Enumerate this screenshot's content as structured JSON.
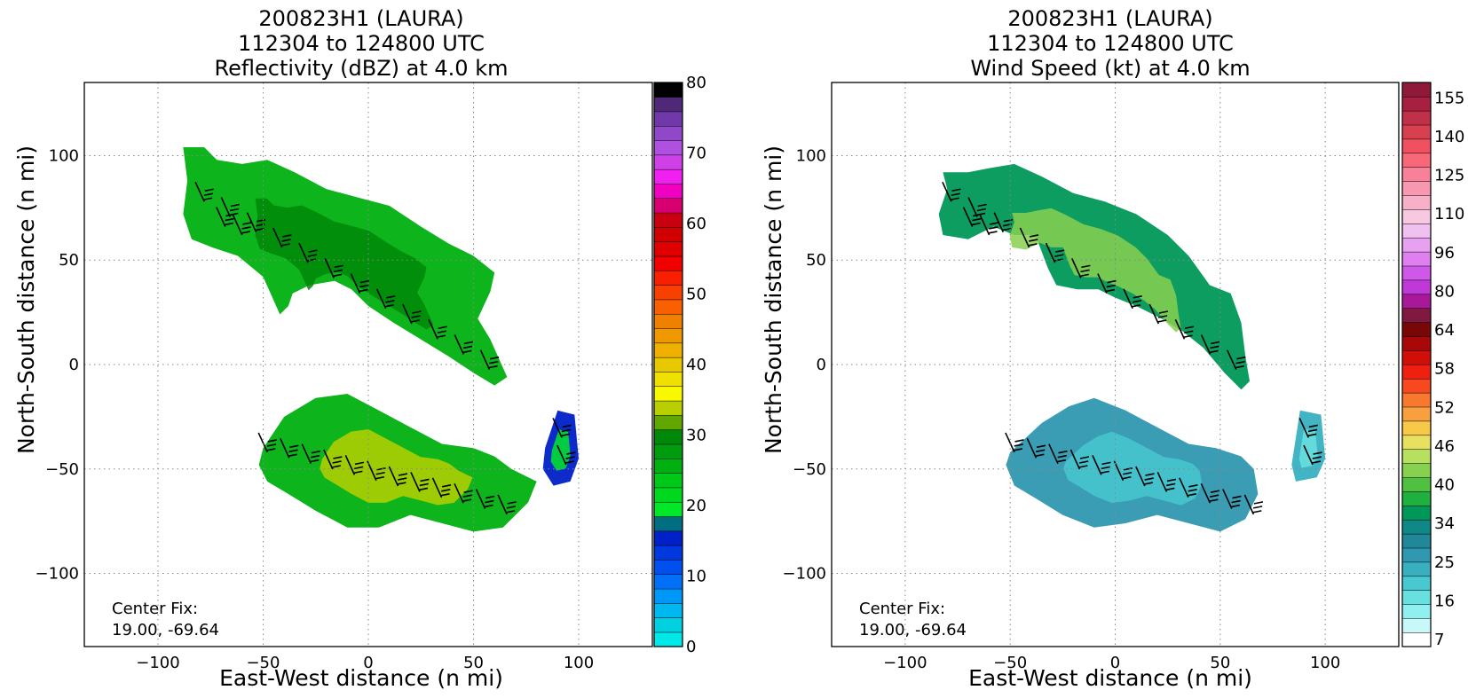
{
  "figure": {
    "center_fix_label": "Center Fix:",
    "center_fix_value": "19.00, -69.64"
  },
  "chart_data": [
    {
      "type": "heatmap",
      "title_line1": "200823H1 (LAURA)",
      "title_line2": "112304 to 124800 UTC",
      "title_line3": "Reflectivity (dBZ) at 4.0 km",
      "xlabel": "East-West distance (n mi)",
      "ylabel": "North-South distance (n mi)",
      "xlim": [
        -135,
        135
      ],
      "ylim": [
        -135,
        135
      ],
      "xticks": [
        -100,
        -50,
        0,
        50,
        100
      ],
      "yticks": [
        -100,
        -50,
        0,
        50,
        100
      ],
      "xtick_labels": [
        "−100",
        "−50",
        "0",
        "50",
        "100"
      ],
      "ytick_labels": [
        "−100",
        "−50",
        "0",
        "50",
        "100"
      ],
      "grid": true,
      "colorbar": {
        "range": [
          0,
          80
        ],
        "ticks": [
          0,
          10,
          20,
          30,
          40,
          50,
          60,
          70,
          80
        ],
        "tick_labels": [
          "0",
          "10",
          "20",
          "30",
          "40",
          "50",
          "60",
          "70",
          "80"
        ],
        "colors": [
          "#00e8e8",
          "#00d0e0",
          "#00b8f0",
          "#0098f8",
          "#0070f8",
          "#0050f0",
          "#0038e0",
          "#0020c8",
          "#006e80",
          "#00e828",
          "#00d820",
          "#00c818",
          "#00b010",
          "#009c10",
          "#008808",
          "#60a800",
          "#b8d000",
          "#f8f800",
          "#f0e000",
          "#e8c800",
          "#f0b000",
          "#f09800",
          "#f08000",
          "#f86000",
          "#f84000",
          "#f82000",
          "#f00000",
          "#e00000",
          "#d00000",
          "#c80010",
          "#d80070",
          "#f000c0",
          "#f020f0",
          "#d040e8",
          "#b050e0",
          "#9048c8",
          "#7038a8",
          "#502878",
          "#000000"
        ]
      },
      "regions": [
        {
          "name": "northern rainband",
          "dbz": 25,
          "points": [
            [
              -88,
              104
            ],
            [
              -78,
              104
            ],
            [
              -72,
              98
            ],
            [
              -60,
              96
            ],
            [
              -48,
              98
            ],
            [
              -35,
              92
            ],
            [
              -20,
              84
            ],
            [
              -5,
              80
            ],
            [
              10,
              76
            ],
            [
              25,
              66
            ],
            [
              38,
              58
            ],
            [
              50,
              52
            ],
            [
              60,
              44
            ],
            [
              58,
              35
            ],
            [
              52,
              22
            ],
            [
              58,
              12
            ],
            [
              66,
              -6
            ],
            [
              60,
              -10
            ],
            [
              50,
              -4
            ],
            [
              38,
              4
            ],
            [
              25,
              12
            ],
            [
              12,
              20
            ],
            [
              0,
              28
            ],
            [
              -8,
              36
            ],
            [
              -16,
              40
            ],
            [
              -28,
              38
            ],
            [
              -36,
              34
            ],
            [
              -38,
              28
            ],
            [
              -42,
              24
            ],
            [
              -50,
              42
            ],
            [
              -62,
              52
            ],
            [
              -74,
              56
            ],
            [
              -84,
              60
            ],
            [
              -88,
              72
            ],
            [
              -86,
              88
            ]
          ]
        },
        {
          "name": "southern rainband",
          "dbz": 26,
          "points": [
            [
              -50,
              -40
            ],
            [
              -40,
              -25
            ],
            [
              -25,
              -16
            ],
            [
              -10,
              -14
            ],
            [
              5,
              -22
            ],
            [
              20,
              -30
            ],
            [
              35,
              -38
            ],
            [
              50,
              -40
            ],
            [
              60,
              -44
            ],
            [
              68,
              -50
            ],
            [
              80,
              -56
            ],
            [
              76,
              -66
            ],
            [
              64,
              -78
            ],
            [
              50,
              -80
            ],
            [
              35,
              -76
            ],
            [
              20,
              -72
            ],
            [
              5,
              -78
            ],
            [
              -10,
              -78
            ],
            [
              -25,
              -70
            ],
            [
              -38,
              -62
            ],
            [
              -48,
              -56
            ],
            [
              -52,
              -48
            ]
          ]
        },
        {
          "name": "eastern cell",
          "dbz": 14,
          "points": [
            [
              84,
              -40
            ],
            [
              90,
              -22
            ],
            [
              98,
              -24
            ],
            [
              100,
              -45
            ],
            [
              96,
              -56
            ],
            [
              88,
              -58
            ],
            [
              83,
              -50
            ]
          ]
        }
      ],
      "barbs_present": true
    },
    {
      "type": "heatmap",
      "title_line1": "200823H1 (LAURA)",
      "title_line2": "112304 to 124800 UTC",
      "title_line3": "Wind Speed (kt) at 4.0 km",
      "xlabel": "East-West distance (n mi)",
      "ylabel": "North-South distance (n mi)",
      "xlim": [
        -135,
        135
      ],
      "ylim": [
        -135,
        135
      ],
      "xticks": [
        -100,
        -50,
        0,
        50,
        100
      ],
      "yticks": [
        -100,
        -50,
        0,
        50,
        100
      ],
      "xtick_labels": [
        "−100",
        "−50",
        "0",
        "50",
        "100"
      ],
      "ytick_labels": [
        "−100",
        "−50",
        "0",
        "50",
        "100"
      ],
      "grid": true,
      "colorbar": {
        "range": [
          7,
          160
        ],
        "tick_labels": [
          "7",
          "16",
          "25",
          "34",
          "40",
          "46",
          "52",
          "58",
          "64",
          "80",
          "96",
          "110",
          "125",
          "140",
          "155"
        ],
        "colors": [
          "#ffffff",
          "#c8f8f8",
          "#90f0f0",
          "#68e0e0",
          "#48c8d0",
          "#38b0c0",
          "#3098b0",
          "#208898",
          "#108888",
          "#009858",
          "#20b040",
          "#50c040",
          "#88d050",
          "#b8e060",
          "#e8e060",
          "#f8c848",
          "#f8a040",
          "#f87830",
          "#f84820",
          "#f02010",
          "#d01008",
          "#a80808",
          "#780808",
          "#801840",
          "#a81898",
          "#c038d8",
          "#d058e8",
          "#e080f0",
          "#e8a0f0",
          "#f0c0f0",
          "#f8c8e0",
          "#f8b0c8",
          "#f898b0",
          "#f88098",
          "#f86878",
          "#f05060",
          "#d84050",
          "#c03048",
          "#a82040",
          "#901838"
        ]
      },
      "regions": [
        {
          "name": "northern rainband",
          "kt": 42,
          "points": [
            [
              -82,
              92
            ],
            [
              -70,
              92
            ],
            [
              -60,
              94
            ],
            [
              -48,
              96
            ],
            [
              -35,
              90
            ],
            [
              -20,
              82
            ],
            [
              -5,
              78
            ],
            [
              10,
              72
            ],
            [
              25,
              62
            ],
            [
              35,
              52
            ],
            [
              45,
              38
            ],
            [
              55,
              34
            ],
            [
              60,
              20
            ],
            [
              62,
              4
            ],
            [
              64,
              -8
            ],
            [
              60,
              -12
            ],
            [
              52,
              -4
            ],
            [
              42,
              8
            ],
            [
              32,
              16
            ],
            [
              22,
              22
            ],
            [
              10,
              28
            ],
            [
              0,
              32
            ],
            [
              -8,
              36
            ],
            [
              -18,
              36
            ],
            [
              -28,
              38
            ],
            [
              -32,
              46
            ],
            [
              -38,
              62
            ],
            [
              -48,
              62
            ],
            [
              -58,
              66
            ],
            [
              -70,
              60
            ],
            [
              -82,
              62
            ],
            [
              -84,
              72
            ],
            [
              -80,
              84
            ]
          ]
        },
        {
          "name": "southern rainband",
          "kt": 32,
          "points": [
            [
              -50,
              -42
            ],
            [
              -35,
              -28
            ],
            [
              -22,
              -20
            ],
            [
              -10,
              -16
            ],
            [
              5,
              -22
            ],
            [
              20,
              -30
            ],
            [
              35,
              -38
            ],
            [
              48,
              -40
            ],
            [
              60,
              -44
            ],
            [
              66,
              -50
            ],
            [
              68,
              -62
            ],
            [
              62,
              -74
            ],
            [
              50,
              -80
            ],
            [
              35,
              -76
            ],
            [
              20,
              -72
            ],
            [
              5,
              -76
            ],
            [
              -10,
              -78
            ],
            [
              -25,
              -72
            ],
            [
              -38,
              -64
            ],
            [
              -48,
              -58
            ],
            [
              -52,
              -48
            ]
          ]
        },
        {
          "name": "eastern cell",
          "kt": 28,
          "points": [
            [
              84,
              -48
            ],
            [
              88,
              -22
            ],
            [
              98,
              -24
            ],
            [
              100,
              -45
            ],
            [
              96,
              -54
            ],
            [
              86,
              -56
            ]
          ]
        }
      ],
      "barbs_present": true
    }
  ]
}
